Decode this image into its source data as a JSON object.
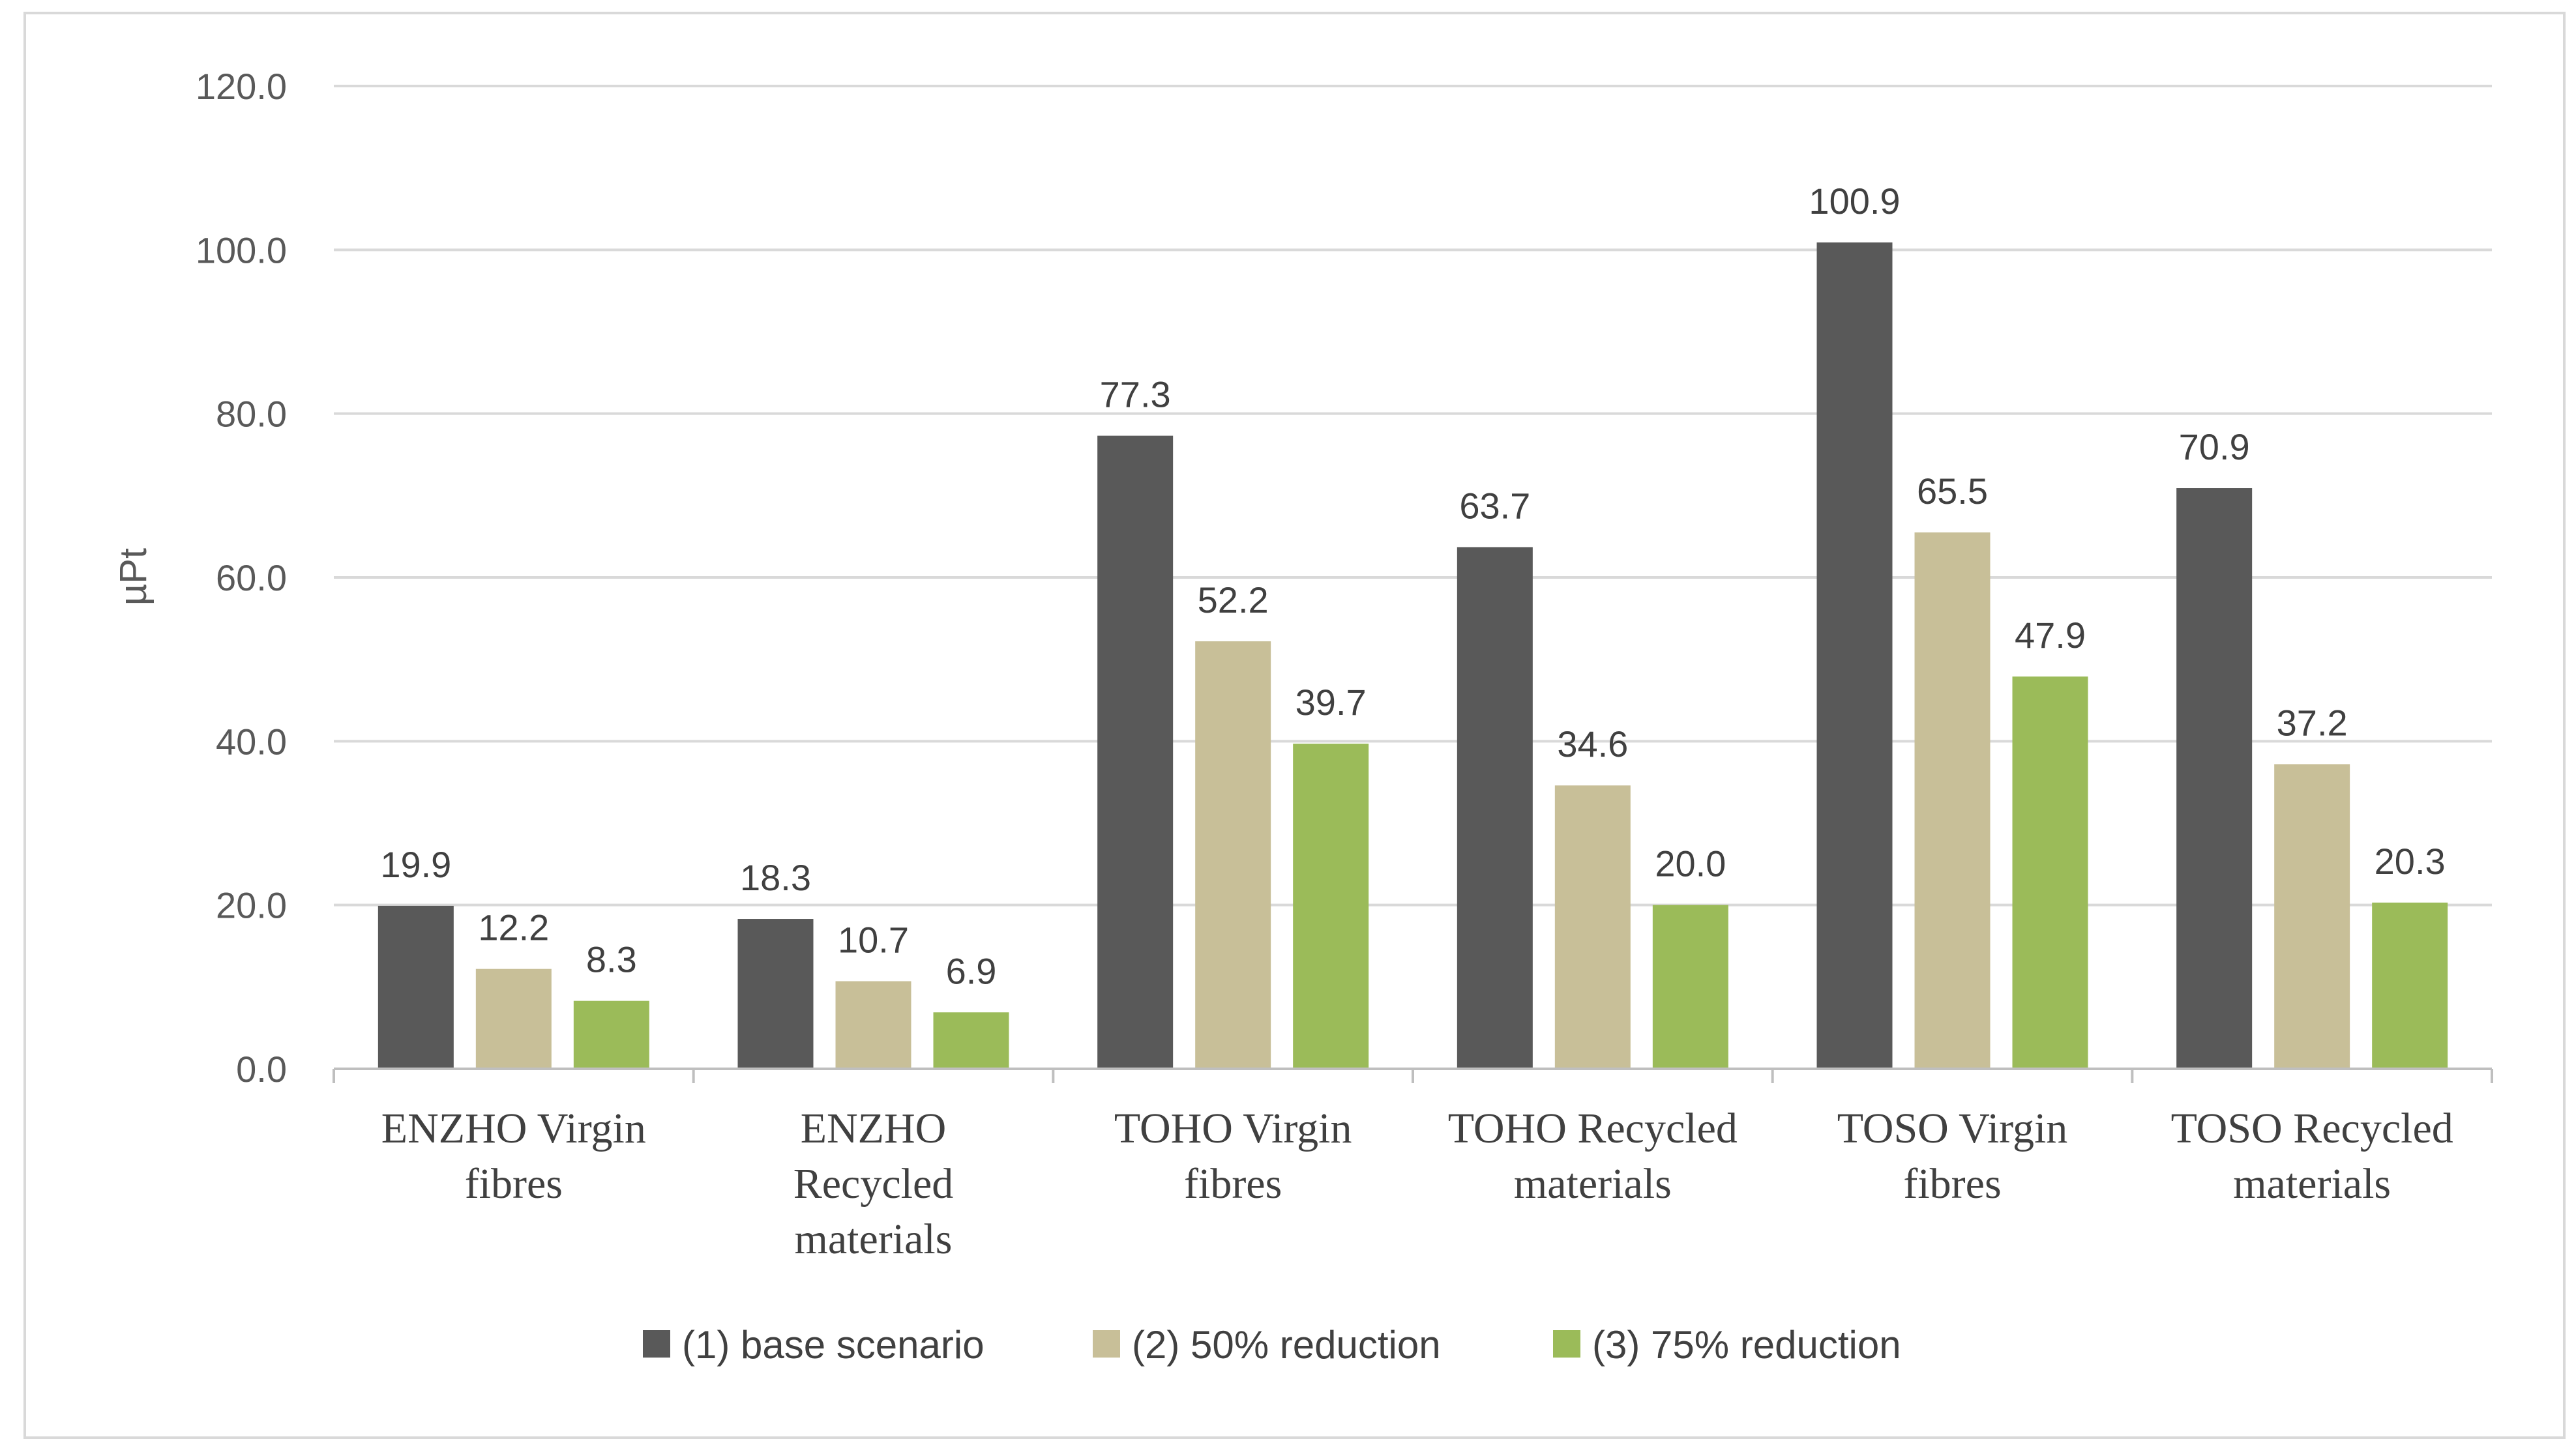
{
  "chart_data": {
    "type": "bar",
    "title": "",
    "xlabel": "",
    "ylabel": "µPt",
    "ylim": [
      0,
      120
    ],
    "yticks": [
      "0.0",
      "20.0",
      "40.0",
      "60.0",
      "80.0",
      "100.0",
      "120.0"
    ],
    "grid": true,
    "legend_position": "bottom",
    "categories": [
      [
        "ENZHO Virgin",
        "fibres"
      ],
      [
        "ENZHO",
        "Recycled",
        "materials"
      ],
      [
        "TOHO Virgin",
        "fibres"
      ],
      [
        "TOHO Recycled",
        "materials"
      ],
      [
        "TOSO Virgin",
        "fibres"
      ],
      [
        "TOSO Recycled",
        "materials"
      ]
    ],
    "series": [
      {
        "name": "(1) base scenario",
        "color": "#595959",
        "values": [
          19.9,
          18.3,
          77.3,
          63.7,
          100.9,
          70.9
        ],
        "labels": [
          "19.9",
          "18.3",
          "77.3",
          "63.7",
          "100.9",
          "70.9"
        ]
      },
      {
        "name": "(2) 50% reduction",
        "color": "#c8bf98",
        "values": [
          12.2,
          10.7,
          52.2,
          34.6,
          65.5,
          37.2
        ],
        "labels": [
          "12.2",
          "10.7",
          "52.2",
          "34.6",
          "65.5",
          "37.2"
        ]
      },
      {
        "name": "(3) 75% reduction",
        "color": "#9bbb59",
        "values": [
          8.3,
          6.9,
          39.7,
          20.0,
          47.9,
          20.3
        ],
        "labels": [
          "8.3",
          "6.9",
          "39.7",
          "20.0",
          "47.9",
          "20.3"
        ]
      }
    ]
  }
}
